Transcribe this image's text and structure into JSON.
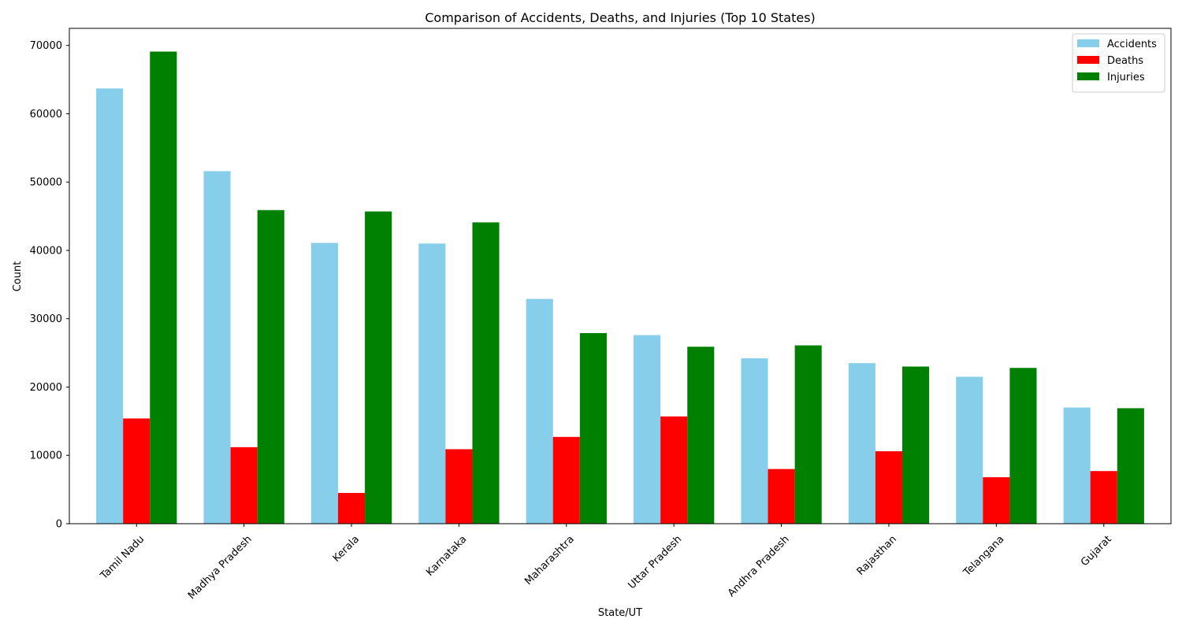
{
  "chart_data": {
    "type": "bar",
    "title": "Comparison of Accidents, Deaths, and Injuries (Top 10 States)",
    "xlabel": "State/UT",
    "ylabel": "Count",
    "ylim": [
      0,
      72500
    ],
    "yticks": [
      0,
      10000,
      20000,
      30000,
      40000,
      50000,
      60000,
      70000
    ],
    "categories": [
      "Tamil Nadu",
      "Madhya Pradesh",
      "Kerala",
      "Karnataka",
      "Maharashtra",
      "Uttar Pradesh",
      "Andhra Pradesh",
      "Rajasthan",
      "Telangana",
      "Gujarat"
    ],
    "series": [
      {
        "name": "Accidents",
        "color": "#87ceeb",
        "values": [
          63700,
          51600,
          41100,
          41000,
          32900,
          27600,
          24200,
          23500,
          21500,
          17000
        ]
      },
      {
        "name": "Deaths",
        "color": "#ff0000",
        "values": [
          15400,
          11200,
          4500,
          10900,
          12700,
          15700,
          8000,
          10600,
          6800,
          7700
        ]
      },
      {
        "name": "Injuries",
        "color": "#008000",
        "values": [
          69100,
          45900,
          45700,
          44100,
          27900,
          25900,
          26100,
          23000,
          22800,
          16900
        ]
      }
    ],
    "legend_position": "top-right",
    "grid": false
  }
}
